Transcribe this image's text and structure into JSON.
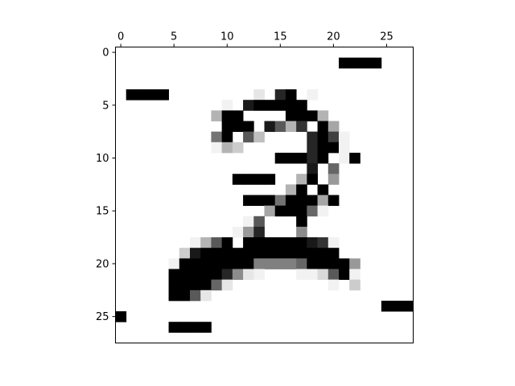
{
  "chart_data": {
    "type": "heatmap",
    "title": "",
    "xlabel": "",
    "ylabel": "",
    "colormap": "gray_r",
    "xlim": [
      -0.5,
      27.5
    ],
    "ylim": [
      27.5,
      -0.5
    ],
    "x_axis_position": "top",
    "y_axis_direction": "inverted",
    "x_ticks": [
      0,
      5,
      10,
      15,
      20,
      25
    ],
    "x_tick_labels": [
      "0",
      "5",
      "10",
      "15",
      "20",
      "25"
    ],
    "y_ticks": [
      0,
      5,
      10,
      15,
      20,
      25
    ],
    "y_tick_labels": [
      "0",
      "5",
      "10",
      "15",
      "20",
      "25"
    ],
    "grid": false,
    "value_range": [
      0,
      1
    ],
    "cells": [
      [
        21,
        1,
        1.0
      ],
      [
        22,
        1,
        1.0
      ],
      [
        23,
        1,
        1.0
      ],
      [
        24,
        1,
        1.0
      ],
      [
        1,
        4,
        1.0
      ],
      [
        2,
        4,
        1.0
      ],
      [
        3,
        4,
        1.0
      ],
      [
        4,
        4,
        1.0
      ],
      [
        13,
        4,
        0.1
      ],
      [
        15,
        4,
        0.85
      ],
      [
        16,
        4,
        1.0
      ],
      [
        18,
        4,
        0.05
      ],
      [
        10,
        5,
        0.05
      ],
      [
        12,
        5,
        0.9
      ],
      [
        13,
        5,
        1.0
      ],
      [
        14,
        5,
        1.0
      ],
      [
        15,
        5,
        1.0
      ],
      [
        16,
        5,
        1.0
      ],
      [
        17,
        5,
        1.0
      ],
      [
        9,
        6,
        0.3
      ],
      [
        10,
        6,
        1.0
      ],
      [
        11,
        6,
        1.0
      ],
      [
        16,
        6,
        1.0
      ],
      [
        17,
        6,
        1.0
      ],
      [
        18,
        6,
        1.0
      ],
      [
        19,
        6,
        0.3
      ],
      [
        10,
        7,
        1.0
      ],
      [
        11,
        7,
        1.0
      ],
      [
        12,
        7,
        1.0
      ],
      [
        14,
        7,
        0.9
      ],
      [
        15,
        7,
        0.65
      ],
      [
        16,
        7,
        0.3
      ],
      [
        17,
        7,
        0.8
      ],
      [
        19,
        7,
        1.0
      ],
      [
        20,
        7,
        0.35
      ],
      [
        9,
        8,
        0.55
      ],
      [
        10,
        8,
        1.0
      ],
      [
        12,
        8,
        0.65
      ],
      [
        13,
        8,
        0.25
      ],
      [
        18,
        8,
        0.85
      ],
      [
        19,
        8,
        1.0
      ],
      [
        20,
        8,
        0.75
      ],
      [
        21,
        8,
        0.05
      ],
      [
        9,
        9,
        0.05
      ],
      [
        10,
        9,
        0.3
      ],
      [
        11,
        9,
        0.2
      ],
      [
        18,
        9,
        0.85
      ],
      [
        19,
        9,
        1.0
      ],
      [
        20,
        9,
        1.0
      ],
      [
        21,
        9,
        0.05
      ],
      [
        15,
        10,
        1.0
      ],
      [
        16,
        10,
        1.0
      ],
      [
        17,
        10,
        1.0
      ],
      [
        18,
        10,
        0.85
      ],
      [
        19,
        10,
        1.0
      ],
      [
        21,
        10,
        0.05
      ],
      [
        22,
        10,
        1.0
      ],
      [
        18,
        11,
        0.9
      ],
      [
        20,
        11,
        0.6
      ],
      [
        11,
        12,
        1.0
      ],
      [
        12,
        12,
        1.0
      ],
      [
        13,
        12,
        1.0
      ],
      [
        14,
        12,
        1.0
      ],
      [
        17,
        12,
        0.3
      ],
      [
        18,
        12,
        1.0
      ],
      [
        20,
        12,
        0.4
      ],
      [
        16,
        13,
        0.3
      ],
      [
        17,
        13,
        1.0
      ],
      [
        19,
        13,
        1.0
      ],
      [
        12,
        14,
        1.0
      ],
      [
        13,
        14,
        1.0
      ],
      [
        14,
        14,
        1.0
      ],
      [
        15,
        14,
        0.55
      ],
      [
        16,
        14,
        1.0
      ],
      [
        17,
        14,
        1.0
      ],
      [
        18,
        14,
        1.0
      ],
      [
        19,
        14,
        0.35
      ],
      [
        20,
        14,
        1.0
      ],
      [
        14,
        15,
        0.35
      ],
      [
        15,
        15,
        1.0
      ],
      [
        16,
        15,
        1.0
      ],
      [
        17,
        15,
        1.0
      ],
      [
        18,
        15,
        0.6
      ],
      [
        19,
        15,
        0.05
      ],
      [
        12,
        16,
        0.05
      ],
      [
        13,
        16,
        0.65
      ],
      [
        17,
        16,
        1.0
      ],
      [
        11,
        17,
        0.05
      ],
      [
        12,
        17,
        0.4
      ],
      [
        13,
        17,
        0.85
      ],
      [
        17,
        17,
        0.45
      ],
      [
        7,
        18,
        0.05
      ],
      [
        8,
        18,
        0.3
      ],
      [
        9,
        18,
        0.65
      ],
      [
        10,
        18,
        1.0
      ],
      [
        12,
        18,
        1.0
      ],
      [
        13,
        18,
        1.0
      ],
      [
        14,
        18,
        1.0
      ],
      [
        15,
        18,
        1.0
      ],
      [
        16,
        18,
        1.0
      ],
      [
        17,
        18,
        1.0
      ],
      [
        18,
        18,
        0.9
      ],
      [
        19,
        18,
        0.8
      ],
      [
        20,
        18,
        0.05
      ],
      [
        6,
        19,
        0.2
      ],
      [
        7,
        19,
        0.9
      ],
      [
        8,
        19,
        1.0
      ],
      [
        9,
        19,
        1.0
      ],
      [
        10,
        19,
        1.0
      ],
      [
        11,
        19,
        1.0
      ],
      [
        12,
        19,
        1.0
      ],
      [
        13,
        19,
        1.0
      ],
      [
        14,
        19,
        1.0
      ],
      [
        15,
        19,
        1.0
      ],
      [
        16,
        19,
        1.0
      ],
      [
        17,
        19,
        1.0
      ],
      [
        18,
        19,
        1.0
      ],
      [
        19,
        19,
        1.0
      ],
      [
        20,
        19,
        1.0
      ],
      [
        5,
        20,
        0.05
      ],
      [
        6,
        20,
        1.0
      ],
      [
        7,
        20,
        1.0
      ],
      [
        8,
        20,
        1.0
      ],
      [
        9,
        20,
        1.0
      ],
      [
        10,
        20,
        1.0
      ],
      [
        11,
        20,
        1.0
      ],
      [
        12,
        20,
        1.0
      ],
      [
        13,
        20,
        0.5
      ],
      [
        14,
        20,
        0.5
      ],
      [
        15,
        20,
        0.5
      ],
      [
        16,
        20,
        0.5
      ],
      [
        17,
        20,
        0.6
      ],
      [
        18,
        20,
        1.0
      ],
      [
        19,
        20,
        1.0
      ],
      [
        20,
        20,
        1.0
      ],
      [
        21,
        20,
        1.0
      ],
      [
        22,
        20,
        0.4
      ],
      [
        5,
        21,
        1.0
      ],
      [
        6,
        21,
        1.0
      ],
      [
        7,
        21,
        1.0
      ],
      [
        8,
        21,
        1.0
      ],
      [
        9,
        21,
        1.0
      ],
      [
        10,
        21,
        0.85
      ],
      [
        11,
        21,
        0.45
      ],
      [
        12,
        21,
        0.1
      ],
      [
        13,
        21,
        0.05
      ],
      [
        17,
        21,
        0.05
      ],
      [
        18,
        21,
        0.05
      ],
      [
        19,
        21,
        0.15
      ],
      [
        20,
        21,
        0.65
      ],
      [
        21,
        21,
        1.0
      ],
      [
        22,
        21,
        0.05
      ],
      [
        5,
        22,
        1.0
      ],
      [
        6,
        22,
        1.0
      ],
      [
        7,
        22,
        1.0
      ],
      [
        8,
        22,
        1.0
      ],
      [
        9,
        22,
        0.6
      ],
      [
        10,
        22,
        0.1
      ],
      [
        20,
        22,
        0.05
      ],
      [
        22,
        22,
        0.2
      ],
      [
        5,
        23,
        1.0
      ],
      [
        6,
        23,
        1.0
      ],
      [
        7,
        23,
        0.65
      ],
      [
        8,
        23,
        0.1
      ],
      [
        25,
        24,
        1.0
      ],
      [
        26,
        24,
        1.0
      ],
      [
        27,
        24,
        1.0
      ],
      [
        0,
        25,
        1.0
      ],
      [
        5,
        26,
        1.0
      ],
      [
        6,
        26,
        1.0
      ],
      [
        7,
        26,
        1.0
      ],
      [
        8,
        26,
        1.0
      ]
    ]
  }
}
